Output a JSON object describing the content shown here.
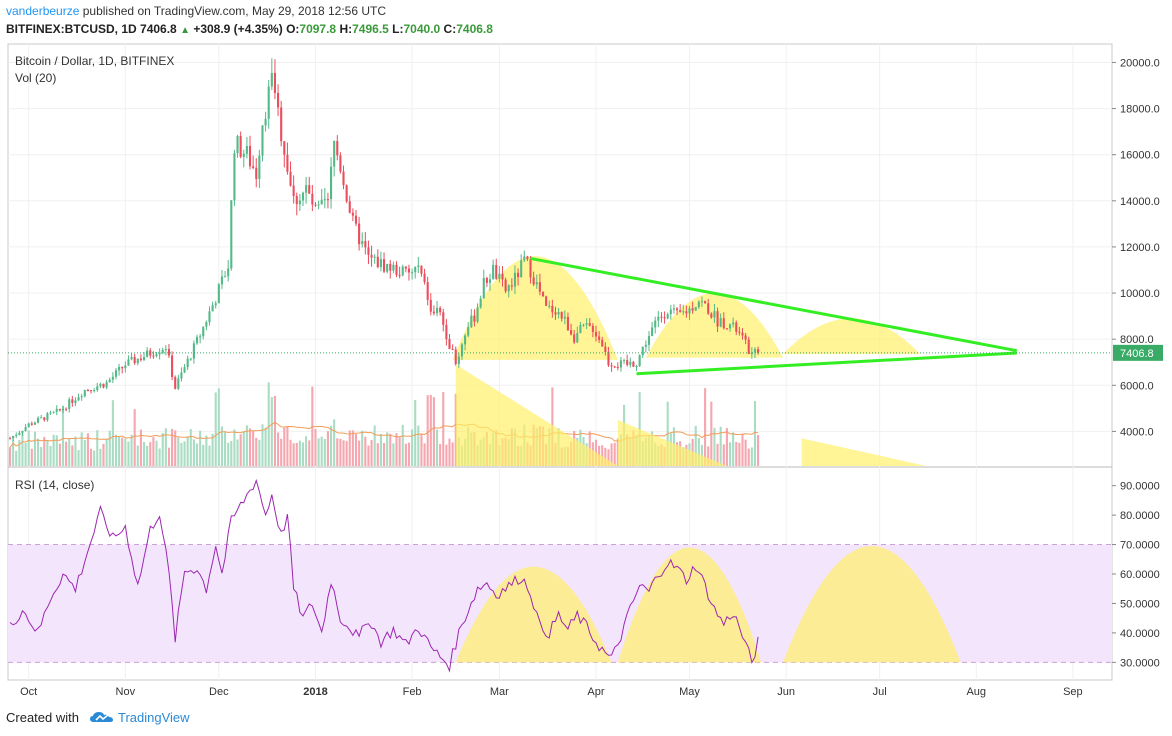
{
  "header": {
    "user": "vanderbeurze",
    "published": "published on TradingView.com, May 29, 2018 12:56 UTC",
    "symbol": "BITFINEX:BTCUSD, 1D",
    "last": "7406.8",
    "change_arrow": "▲",
    "change": "+308.9 (+4.35%)",
    "o_label": "O:",
    "o_value": "7097.8",
    "h_label": "H:",
    "h_value": "7496.5",
    "l_label": "L:",
    "l_value": "7040.0",
    "c_label": "C:",
    "c_value": "7406.8"
  },
  "legend": {
    "main": "Bitcoin / Dollar, 1D, BITFINEX",
    "vol": "Vol (20)",
    "rsi": "RSI (14, close)"
  },
  "footer": {
    "created": "Created with",
    "brand": "TradingView"
  },
  "colors": {
    "up": "#53b987",
    "down": "#eb4d5c",
    "vol_up": "#a9dcc3",
    "vol_down": "#f5a6ae",
    "trendline": "#33ee22",
    "highlight": "#fff06a",
    "rsi_line": "#9c27b0",
    "rsi_band": "#f3e5fc",
    "last_price": "#3aab66"
  },
  "chart_data": [
    {
      "type": "candlestick",
      "title": "Bitcoin / Dollar, 1D, BITFINEX",
      "x_ticks": [
        "Oct",
        "Nov",
        "Dec",
        "2018",
        "Feb",
        "Mar",
        "Apr",
        "May",
        "Jun",
        "Jul",
        "Aug",
        "Sep"
      ],
      "y_ticks": [
        "4000.0",
        "6000.0",
        "8000.0",
        "10000.0",
        "12000.0",
        "14000.0",
        "16000.0",
        "18000.0",
        "20000.0"
      ],
      "ylim": [
        2500,
        20800
      ],
      "last_price": 7406.8,
      "close_series": {
        "start": "2017-09-25",
        "step": "1D",
        "anchors": [
          [
            0,
            3700
          ],
          [
            6,
            4300
          ],
          [
            16,
            4900
          ],
          [
            24,
            5800
          ],
          [
            31,
            6100
          ],
          [
            37,
            6900
          ],
          [
            45,
            7400
          ],
          [
            50,
            7700
          ],
          [
            53,
            5900
          ],
          [
            61,
            8200
          ],
          [
            66,
            9800
          ],
          [
            70,
            11200
          ],
          [
            72,
            16500
          ],
          [
            76,
            16000
          ],
          [
            79,
            15200
          ],
          [
            81,
            17500
          ],
          [
            84,
            19200
          ],
          [
            87,
            17000
          ],
          [
            91,
            14000
          ],
          [
            95,
            14500
          ],
          [
            98,
            13500
          ],
          [
            102,
            13900
          ],
          [
            104,
            16500
          ],
          [
            106,
            15500
          ],
          [
            110,
            13000
          ],
          [
            115,
            11500
          ],
          [
            120,
            11200
          ],
          [
            124,
            11000
          ],
          [
            128,
            10800
          ],
          [
            131,
            11100
          ],
          [
            135,
            9400
          ],
          [
            138,
            9100
          ],
          [
            141,
            7800
          ],
          [
            143,
            6900
          ],
          [
            146,
            8300
          ],
          [
            149,
            9000
          ],
          [
            152,
            10400
          ],
          [
            155,
            11000
          ],
          [
            159,
            10100
          ],
          [
            162,
            10600
          ],
          [
            165,
            11400
          ],
          [
            167,
            11000
          ],
          [
            170,
            10000
          ],
          [
            172,
            9300
          ],
          [
            175,
            9300
          ],
          [
            178,
            8800
          ],
          [
            181,
            8100
          ],
          [
            184,
            8500
          ],
          [
            187,
            8500
          ],
          [
            190,
            7800
          ],
          [
            192,
            7000
          ],
          [
            195,
            6900
          ],
          [
            198,
            6900
          ],
          [
            201,
            7000
          ],
          [
            204,
            7900
          ],
          [
            208,
            8900
          ],
          [
            211,
            9300
          ],
          [
            214,
            9000
          ],
          [
            218,
            9300
          ],
          [
            221,
            9700
          ],
          [
            224,
            9300
          ],
          [
            227,
            8800
          ],
          [
            230,
            8700
          ],
          [
            233,
            8400
          ],
          [
            235,
            8000
          ],
          [
            238,
            7300
          ],
          [
            240,
            7406.8
          ]
        ]
      },
      "volume": {
        "name": "Vol (20)",
        "y_ticks": [],
        "peak_days": [
          [
            84,
            "high"
          ],
          [
            135,
            "high"
          ],
          [
            143,
            "spike"
          ]
        ]
      }
    },
    {
      "type": "line",
      "title": "RSI (14, close)",
      "y_ticks": [
        "30.0000",
        "40.0000",
        "50.0000",
        "60.0000",
        "70.0000",
        "80.0000",
        "90.0000"
      ],
      "ylim": [
        24,
        96
      ],
      "band": [
        30,
        70
      ],
      "anchors": [
        [
          0,
          42
        ],
        [
          4,
          48
        ],
        [
          9,
          40
        ],
        [
          13,
          52
        ],
        [
          17,
          60
        ],
        [
          21,
          55
        ],
        [
          25,
          68
        ],
        [
          29,
          81
        ],
        [
          33,
          72
        ],
        [
          37,
          76
        ],
        [
          41,
          56
        ],
        [
          45,
          75
        ],
        [
          48,
          81
        ],
        [
          51,
          60
        ],
        [
          53,
          38
        ],
        [
          56,
          61
        ],
        [
          60,
          62
        ],
        [
          63,
          55
        ],
        [
          66,
          70
        ],
        [
          68,
          60
        ],
        [
          71,
          78
        ],
        [
          75,
          85
        ],
        [
          79,
          92
        ],
        [
          82,
          80
        ],
        [
          84,
          87
        ],
        [
          87,
          73
        ],
        [
          89,
          80
        ],
        [
          91,
          55
        ],
        [
          94,
          45
        ],
        [
          97,
          50
        ],
        [
          100,
          40
        ],
        [
          103,
          58
        ],
        [
          106,
          45
        ],
        [
          109,
          42
        ],
        [
          112,
          38
        ],
        [
          115,
          45
        ],
        [
          119,
          37
        ],
        [
          123,
          41
        ],
        [
          127,
          36
        ],
        [
          131,
          42
        ],
        [
          135,
          35
        ],
        [
          139,
          31
        ],
        [
          141,
          29
        ],
        [
          144,
          40
        ],
        [
          147,
          48
        ],
        [
          150,
          55
        ],
        [
          153,
          57
        ],
        [
          156,
          53
        ],
        [
          160,
          56
        ],
        [
          164,
          59
        ],
        [
          167,
          54
        ],
        [
          170,
          42
        ],
        [
          173,
          40
        ],
        [
          176,
          46
        ],
        [
          179,
          41
        ],
        [
          182,
          46
        ],
        [
          185,
          42
        ],
        [
          188,
          37
        ],
        [
          191,
          33
        ],
        [
          193,
          31
        ],
        [
          196,
          39
        ],
        [
          199,
          48
        ],
        [
          202,
          56
        ],
        [
          205,
          54
        ],
        [
          208,
          60
        ],
        [
          211,
          64
        ],
        [
          214,
          62
        ],
        [
          217,
          58
        ],
        [
          220,
          63
        ],
        [
          223,
          56
        ],
        [
          226,
          48
        ],
        [
          229,
          43
        ],
        [
          232,
          47
        ],
        [
          235,
          39
        ],
        [
          238,
          30
        ],
        [
          240,
          37
        ]
      ]
    }
  ]
}
